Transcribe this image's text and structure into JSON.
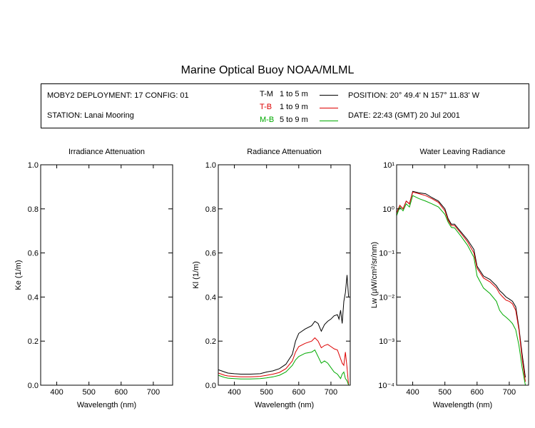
{
  "title": "Marine Optical Buoy NOAA/MLML",
  "info": {
    "deployment": "MOBY2 DEPLOYMENT: 17 CONFIG: 01",
    "station": "STATION: Lanai Mooring",
    "position": "POSITION: 20° 49.4' N   157° 11.83' W",
    "date": "DATE: 22:43 (GMT) 20 Jul 2001"
  },
  "legend": [
    {
      "code": "T-M",
      "range": "1 to 5  m",
      "color": "#000000"
    },
    {
      "code": "T-B",
      "range": "1 to 9  m",
      "color": "#dd0000"
    },
    {
      "code": "M-B",
      "range": "5 to 9  m",
      "color": "#00aa00"
    }
  ],
  "chart_data": [
    {
      "type": "line",
      "title": "Irradiance Attenuation",
      "xlabel": "Wavelength (nm)",
      "ylabel": "Ke  (1/m)",
      "xlim": [
        350,
        760
      ],
      "ylim": [
        0,
        1
      ],
      "xticks": [
        "400",
        "500",
        "600",
        "700"
      ],
      "yticks": [
        "0.0",
        "0.2",
        "0.4",
        "0.6",
        "0.8",
        "1.0"
      ],
      "series": []
    },
    {
      "type": "line",
      "title": "Radiance Attenuation",
      "xlabel": "Wavelength (nm)",
      "ylabel": "Kl  (1/m)",
      "xlim": [
        350,
        760
      ],
      "ylim": [
        0,
        1
      ],
      "xticks": [
        "400",
        "500",
        "600",
        "700"
      ],
      "yticks": [
        "0.0",
        "0.2",
        "0.4",
        "0.6",
        "0.8",
        "1.0"
      ],
      "series": [
        {
          "name": "T-M",
          "color": "#000000",
          "x": [
            350,
            360,
            370,
            380,
            400,
            420,
            450,
            480,
            500,
            520,
            540,
            560,
            580,
            590,
            600,
            620,
            640,
            650,
            660,
            670,
            680,
            690,
            700,
            710,
            720,
            725,
            730,
            735,
            740,
            745,
            750,
            755
          ],
          "y": [
            0.07,
            0.065,
            0.06,
            0.055,
            0.052,
            0.05,
            0.05,
            0.052,
            0.06,
            0.065,
            0.075,
            0.095,
            0.14,
            0.2,
            0.235,
            0.255,
            0.27,
            0.29,
            0.28,
            0.245,
            0.275,
            0.29,
            0.3,
            0.315,
            0.32,
            0.3,
            0.34,
            0.28,
            0.38,
            0.42,
            0.5,
            0.4
          ]
        },
        {
          "name": "T-B",
          "color": "#dd0000",
          "x": [
            350,
            360,
            370,
            380,
            400,
            420,
            450,
            480,
            500,
            520,
            540,
            560,
            580,
            590,
            600,
            620,
            640,
            650,
            660,
            670,
            680,
            690,
            700,
            710,
            720,
            725,
            730,
            735,
            740,
            745,
            750,
            755
          ],
          "y": [
            0.055,
            0.05,
            0.045,
            0.042,
            0.04,
            0.038,
            0.038,
            0.04,
            0.045,
            0.05,
            0.058,
            0.075,
            0.11,
            0.15,
            0.175,
            0.19,
            0.2,
            0.215,
            0.2,
            0.17,
            0.18,
            0.185,
            0.175,
            0.165,
            0.16,
            0.14,
            0.12,
            0.1,
            0.09,
            0.15,
            0.08,
            0.0
          ]
        },
        {
          "name": "M-B",
          "color": "#00aa00",
          "x": [
            350,
            360,
            370,
            380,
            400,
            420,
            450,
            480,
            500,
            520,
            540,
            560,
            580,
            590,
            600,
            620,
            640,
            650,
            660,
            670,
            680,
            690,
            700,
            710,
            720,
            725,
            730,
            735,
            740,
            745,
            750,
            755
          ],
          "y": [
            0.045,
            0.04,
            0.035,
            0.032,
            0.03,
            0.028,
            0.028,
            0.03,
            0.033,
            0.038,
            0.045,
            0.06,
            0.09,
            0.115,
            0.13,
            0.145,
            0.15,
            0.16,
            0.13,
            0.1,
            0.11,
            0.1,
            0.08,
            0.06,
            0.05,
            0.04,
            0.03,
            0.05,
            0.06,
            0.03,
            0.02,
            0.0
          ]
        }
      ]
    },
    {
      "type": "line",
      "title": "Water Leaving Radiance",
      "xlabel": "Wavelength (nm)",
      "ylabel": "Lw  (µW/cm²/sr/nm)",
      "log_y": true,
      "xlim": [
        350,
        760
      ],
      "ylim": [
        0.0001,
        10
      ],
      "xticks": [
        "400",
        "500",
        "600",
        "700"
      ],
      "yticks": [
        "10⁻⁴",
        "10⁻³",
        "10⁻²",
        "10⁻¹",
        "10⁰",
        "10¹"
      ],
      "series": [
        {
          "name": "T-M",
          "color": "#000000",
          "x": [
            350,
            360,
            370,
            380,
            390,
            400,
            420,
            440,
            460,
            480,
            500,
            510,
            520,
            530,
            550,
            570,
            590,
            600,
            620,
            640,
            660,
            670,
            680,
            690,
            700,
            710,
            720,
            730,
            740,
            750
          ],
          "y": [
            0.8,
            1.2,
            1.0,
            1.5,
            1.3,
            2.5,
            2.3,
            2.2,
            1.8,
            1.5,
            1.0,
            0.6,
            0.45,
            0.45,
            0.3,
            0.2,
            0.12,
            0.05,
            0.03,
            0.025,
            0.018,
            0.014,
            0.012,
            0.01,
            0.009,
            0.008,
            0.006,
            0.002,
            0.0005,
            0.00015
          ]
        },
        {
          "name": "T-B",
          "color": "#dd0000",
          "x": [
            350,
            360,
            370,
            380,
            390,
            400,
            420,
            440,
            460,
            480,
            500,
            510,
            520,
            530,
            550,
            570,
            590,
            600,
            620,
            640,
            660,
            670,
            680,
            690,
            700,
            710,
            720,
            730,
            740,
            750
          ],
          "y": [
            0.8,
            1.2,
            1.0,
            1.5,
            1.3,
            2.4,
            2.2,
            2.0,
            1.7,
            1.4,
            0.9,
            0.55,
            0.42,
            0.42,
            0.28,
            0.18,
            0.1,
            0.045,
            0.027,
            0.022,
            0.016,
            0.012,
            0.01,
            0.0085,
            0.008,
            0.007,
            0.005,
            0.0018,
            0.0004,
            0.00012
          ]
        },
        {
          "name": "M-B",
          "color": "#00aa00",
          "x": [
            350,
            360,
            370,
            380,
            390,
            400,
            420,
            440,
            460,
            480,
            500,
            510,
            520,
            530,
            550,
            570,
            590,
            600,
            620,
            640,
            660,
            670,
            680,
            690,
            700,
            710,
            720,
            730,
            740,
            750
          ],
          "y": [
            0.7,
            1.1,
            0.9,
            1.3,
            1.1,
            2.0,
            1.7,
            1.5,
            1.3,
            1.1,
            0.75,
            0.5,
            0.38,
            0.37,
            0.24,
            0.15,
            0.08,
            0.03,
            0.016,
            0.012,
            0.008,
            0.005,
            0.004,
            0.0035,
            0.003,
            0.0025,
            0.0018,
            0.0008,
            0.00025,
            0.0001
          ]
        }
      ]
    }
  ]
}
